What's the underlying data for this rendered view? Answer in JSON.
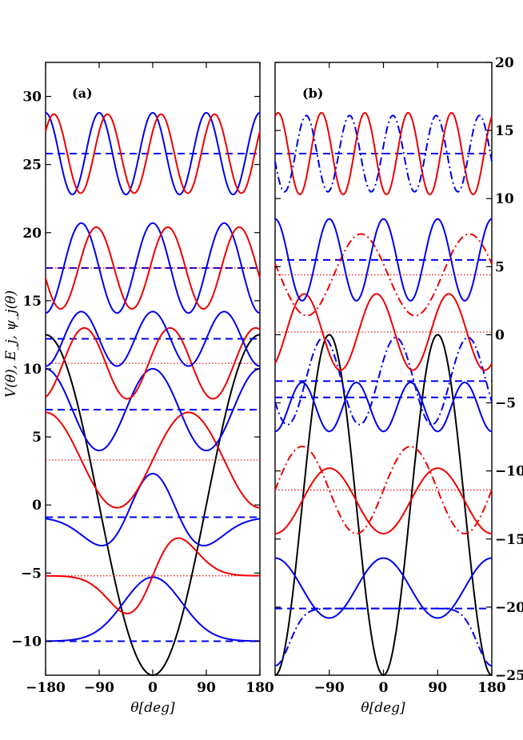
{
  "figure": {
    "ylabel": "V(θ), E_j, ψ_j(θ)",
    "xlabel_a": "θ[deg]",
    "xlabel_b": "θ[deg]"
  },
  "colors": {
    "potential": "#000000",
    "blue": "#0000ee",
    "red": "#ee0000"
  },
  "chart_data": [
    {
      "panel": "(a)",
      "type": "line",
      "xlim": [
        -180,
        180
      ],
      "ylim": [
        -12.5,
        32.5
      ],
      "x_ticks": [
        -180,
        -90,
        0,
        90,
        180
      ],
      "x_tick_labels": [
        "−180",
        "−90",
        "0",
        "90",
        "180"
      ],
      "y_ticks": [
        -10,
        -5,
        0,
        5,
        10,
        15,
        20,
        25,
        30
      ],
      "y_tick_labels": [
        "−10",
        "−5",
        "0",
        "5",
        "10",
        "15",
        "20",
        "25",
        "30"
      ],
      "y_axis_side": "left",
      "potential": {
        "form": "V = -12.5 cos(θ)",
        "min": -12.5,
        "max": 12.5,
        "color": "black"
      },
      "energy_levels": [
        {
          "E": -10.0,
          "style": "dashed",
          "color": "blue"
        },
        {
          "E": -5.2,
          "style": "dotted",
          "color": "red"
        },
        {
          "E": -0.9,
          "style": "dashed",
          "color": "blue"
        },
        {
          "E": 3.3,
          "style": "dotted",
          "color": "red"
        },
        {
          "E": 7.0,
          "style": "dashed",
          "color": "blue"
        },
        {
          "E": 10.4,
          "style": "dotted",
          "color": "red"
        },
        {
          "E": 12.2,
          "style": "dashed",
          "color": "blue"
        },
        {
          "E": 17.4,
          "style": "dashed",
          "color": "blue"
        },
        {
          "E": 17.4,
          "style": "dotted",
          "color": "red"
        },
        {
          "E": 25.8,
          "style": "dashed",
          "color": "blue"
        }
      ],
      "wavefunctions": [
        {
          "kind": "gauss-even",
          "E": -10.0,
          "A": 4.7,
          "w": 0.85,
          "color": "blue"
        },
        {
          "kind": "gauss-odd",
          "E": -5.2,
          "A": 3.8,
          "w": 0.75,
          "color": "red"
        },
        {
          "kind": "gauss-even2",
          "E": -0.9,
          "A": 3.2,
          "w": 0.9,
          "color": "blue"
        },
        {
          "kind": "cos-odd",
          "E": 3.3,
          "A": 3.5,
          "n": 1.5,
          "edge": 3.3,
          "color": "red"
        },
        {
          "kind": "cos-even",
          "E": 7.0,
          "A": 3.0,
          "n": 2,
          "color": "blue"
        },
        {
          "kind": "sin",
          "E": 10.4,
          "A": 2.6,
          "n": 2.5,
          "phi": 0.3,
          "color": "red"
        },
        {
          "kind": "cos-even",
          "E": 12.2,
          "A": 2.0,
          "n": 3,
          "color": "blue"
        },
        {
          "kind": "cos",
          "E": 17.4,
          "A": 3.3,
          "n": 3,
          "phi": 0.0,
          "color": "blue"
        },
        {
          "kind": "sin",
          "E": 17.4,
          "A": 3.0,
          "n": 3,
          "phi": 0.25,
          "color": "red"
        },
        {
          "kind": "cos",
          "E": 25.8,
          "A": 3.0,
          "n": 4,
          "phi": 0.0,
          "color": "blue"
        },
        {
          "kind": "sin",
          "E": 25.8,
          "A": 2.9,
          "n": 4,
          "phi": 0.6,
          "color": "red"
        }
      ]
    },
    {
      "panel": "(b)",
      "type": "line",
      "xlim": [
        -180,
        180
      ],
      "ylim": [
        -25,
        20
      ],
      "x_ticks": [
        -90,
        0,
        90,
        180
      ],
      "x_tick_labels": [
        "−90",
        "0",
        "90",
        "180"
      ],
      "y_ticks": [
        -25,
        -20,
        -15,
        -10,
        -5,
        0,
        5,
        10,
        15,
        20
      ],
      "y_tick_labels": [
        "−25",
        "−20",
        "−15",
        "−10",
        "−5",
        "0",
        "5",
        "10",
        "15",
        "20"
      ],
      "y_axis_side": "right",
      "potential": {
        "form": "V = -12.5 cos(2θ) - 12.5",
        "min": -25,
        "max": 0,
        "color": "black"
      },
      "energy_levels": [
        {
          "E": -20.1,
          "style": "dashed",
          "color": "blue"
        },
        {
          "E": -11.4,
          "style": "dotted",
          "color": "red"
        },
        {
          "E": -4.6,
          "style": "dashed",
          "color": "blue"
        },
        {
          "E": -3.4,
          "style": "dashed",
          "color": "blue"
        },
        {
          "E": 0.2,
          "style": "dotted",
          "color": "red"
        },
        {
          "E": 4.4,
          "style": "dotted",
          "color": "red"
        },
        {
          "E": 5.5,
          "style": "dashed",
          "color": "blue"
        },
        {
          "E": 13.3,
          "style": "dashed",
          "color": "blue"
        }
      ],
      "wavefunctions": [
        {
          "kind": "cos",
          "E": -18.6,
          "A": 2.2,
          "n": 2,
          "phi": 0.0,
          "color": "blue",
          "style": "solid"
        },
        {
          "kind": "gaussdash",
          "E": -20.1,
          "A": 4.2,
          "color": "blue",
          "style": "dashdot"
        },
        {
          "kind": "cos",
          "E": -12.2,
          "A": 2.4,
          "n": 2,
          "phi": 3.1416,
          "color": "red",
          "style": "solid"
        },
        {
          "kind": "sin2",
          "E": -11.4,
          "A": 3.2,
          "n": 2,
          "color": "red",
          "style": "dashdot"
        },
        {
          "kind": "cos",
          "E": -5.3,
          "A": 1.8,
          "n": 4,
          "phi": 3.1416,
          "color": "blue",
          "style": "solid"
        },
        {
          "kind": "sin",
          "E": -3.4,
          "A": 3.2,
          "n": 3,
          "phi": 0.5,
          "color": "blue",
          "style": "dashdot"
        },
        {
          "kind": "cos",
          "E": 0.2,
          "A": 2.8,
          "n": 3,
          "phi": 0.6,
          "color": "red",
          "style": "solid"
        },
        {
          "kind": "cos",
          "E": 4.4,
          "A": 3.0,
          "n": 2,
          "phi": 1.3,
          "color": "red",
          "style": "dashdot"
        },
        {
          "kind": "cos",
          "E": 5.5,
          "A": 3.0,
          "n": 4,
          "phi": 0.0,
          "color": "blue",
          "style": "solid"
        },
        {
          "kind": "cos",
          "E": 13.3,
          "A": 3.0,
          "n": 5,
          "phi": 2.7,
          "color": "red",
          "style": "solid"
        },
        {
          "kind": "sin",
          "E": 13.3,
          "A": 2.8,
          "n": 5,
          "phi": 0.2,
          "color": "blue",
          "style": "dashdot"
        }
      ]
    }
  ]
}
